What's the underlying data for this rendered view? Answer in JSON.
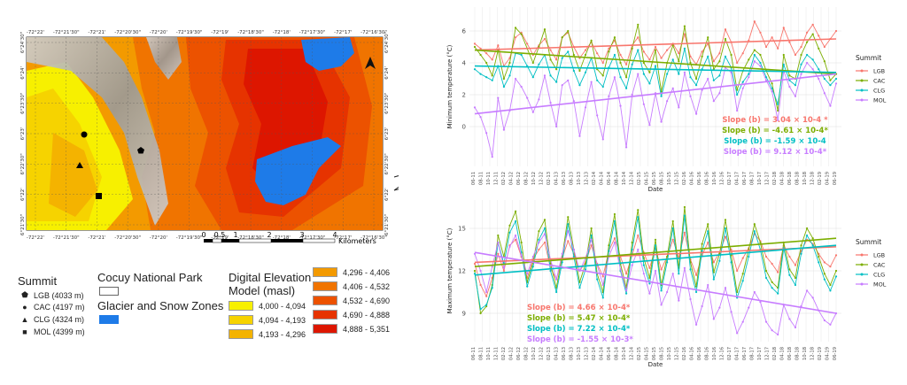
{
  "map": {
    "top_lon_labels": [
      "-72°22'",
      "-72°21'30\"",
      "-72°21'",
      "-72°20'30\"",
      "-72°20'",
      "-72°19'30\"",
      "-72°19'",
      "-72°18'30\"",
      "-72°18'",
      "-72°17'30\"",
      "-72°17'",
      "-72°16'30\""
    ],
    "bottom_lon_labels": [
      "-72°22'",
      "-72°21'30\"",
      "-72°21'",
      "-72°20'30\"",
      "-72°20'",
      "-72°19'30\"",
      "-72°19'",
      "-72°18'30\"",
      "-72°18'",
      "-72°17'30\"",
      "-72°17'",
      "-72°16'30\""
    ],
    "left_lat_labels": [
      "6°24'30\"",
      "6°24'",
      "6°23'30\"",
      "6°23'",
      "6°22'30\"",
      "6°22'",
      "6°21'30\""
    ],
    "right_lat_labels": [
      "6°24'30\"",
      "6°24'",
      "6°23'30\"",
      "6°23'",
      "6°22'30\"",
      "6°22'",
      "6°21'30\""
    ],
    "scale_labels": [
      "0",
      "0.5",
      "1",
      "2",
      "3",
      "4"
    ],
    "scale_unit": "Kilometers",
    "north_arrow": "north-arrow-icon"
  },
  "legend": {
    "summit_title": "Summit",
    "summits": [
      {
        "symbol": "pentagon",
        "label": "LGB (4033 m)"
      },
      {
        "symbol": "circle",
        "label": "CAC (4197 m)"
      },
      {
        "symbol": "triangle",
        "label": "CLG (4324 m)"
      },
      {
        "symbol": "square",
        "label": "MOL (4399 m)"
      }
    ],
    "park_title": "Cocuy National Park",
    "glacier_title": "Glacier and Snow Zones",
    "dem_title_line1": "Digital Elevation",
    "dem_title_line2": "Model (masl)",
    "dem_left": [
      {
        "label": "4,000 - 4,094",
        "color": "#f7f000"
      },
      {
        "label": "4,094 - 4,193",
        "color": "#f6d300"
      },
      {
        "label": "4,193 - 4,296",
        "color": "#f4b300"
      }
    ],
    "dem_right": [
      {
        "label": "4,296 - 4,406",
        "color": "#f39a00"
      },
      {
        "label": "4,406 - 4,532",
        "color": "#f07400"
      },
      {
        "label": "4,532 - 4,690",
        "color": "#ec5200"
      },
      {
        "label": "4,690 - 4,888",
        "color": "#e63300"
      },
      {
        "label": "4,888 - 5,351",
        "color": "#dd1600"
      }
    ],
    "glacier_color": "#1e7be8"
  },
  "chart_data": [
    {
      "type": "line",
      "ylabel": "Minimum temperature (°C)",
      "xlabel": "Date",
      "ylim": [
        -2.5,
        7.5
      ],
      "yticks": [
        0,
        2,
        4,
        6
      ],
      "x_tick_labels": [
        "06-11",
        "08-11",
        "10-11",
        "12-11",
        "02-12",
        "04-12",
        "06-12",
        "08-12",
        "10-12",
        "12-12",
        "02-13",
        "04-13",
        "06-13",
        "08-13",
        "10-13",
        "12-13",
        "02-14",
        "04-14",
        "06-14",
        "08-14",
        "10-14",
        "12-14",
        "02-15",
        "04-15",
        "06-15",
        "08-15",
        "10-15",
        "12-15",
        "02-16",
        "04-16",
        "06-16",
        "08-16",
        "10-16",
        "12-16",
        "02-17",
        "04-17",
        "06-17",
        "08-17",
        "10-17",
        "12-17",
        "02-18",
        "04-18",
        "06-18",
        "08-18",
        "10-18",
        "12-18",
        "02-19",
        "04-19",
        "06-19"
      ],
      "legend_title": "Summit",
      "series": [
        {
          "name": "LGB",
          "color": "#f8766d",
          "values": [
            5.2,
            4.9,
            4.6,
            4.2,
            5.1,
            3.8,
            4.3,
            5.6,
            5.9,
            5.2,
            4.5,
            5.1,
            5.5,
            4.8,
            4.2,
            5.6,
            5.9,
            5.0,
            4.3,
            4.8,
            5.3,
            4.6,
            4.0,
            4.9,
            5.4,
            4.5,
            3.9,
            5.1,
            5.6,
            4.7,
            4.2,
            5.0,
            4.3,
            4.8,
            5.2,
            4.6,
            5.8,
            4.4,
            3.9,
            4.7,
            5.2,
            4.1,
            4.6,
            6.1,
            5.3,
            4.0,
            4.6,
            5.4,
            6.6,
            5.9,
            5.0,
            5.6,
            4.9,
            6.2,
            5.3,
            4.5,
            5.0,
            5.9,
            6.4,
            5.7,
            5.0,
            5.5,
            6.0
          ]
        },
        {
          "name": "CAC",
          "color": "#7cae00",
          "values": [
            5.0,
            4.5,
            4.0,
            3.2,
            4.8,
            3.0,
            4.0,
            6.2,
            5.8,
            4.9,
            4.0,
            5.0,
            6.1,
            4.2,
            3.6,
            5.6,
            6.0,
            4.5,
            3.5,
            4.5,
            5.4,
            3.6,
            3.2,
            4.7,
            5.6,
            4.0,
            3.1,
            4.9,
            6.4,
            4.0,
            3.4,
            4.8,
            2.2,
            4.0,
            5.1,
            4.1,
            6.3,
            4.0,
            3.0,
            4.4,
            5.6,
            3.6,
            4.1,
            5.5,
            4.5,
            2.3,
            3.5,
            4.2,
            4.8,
            4.5,
            3.5,
            2.7,
            1.0,
            4.5,
            3.2,
            3.0,
            4.5,
            5.3,
            5.8,
            4.9,
            4.1,
            2.9,
            3.3
          ]
        },
        {
          "name": "CLG",
          "color": "#00bfc4",
          "values": [
            3.6,
            3.3,
            3.1,
            2.9,
            3.8,
            2.5,
            3.2,
            4.6,
            4.5,
            3.8,
            3.1,
            3.9,
            4.5,
            3.2,
            2.8,
            4.3,
            4.7,
            3.5,
            2.6,
            3.4,
            4.3,
            2.9,
            2.5,
            3.7,
            4.5,
            3.1,
            2.4,
            3.9,
            4.8,
            3.3,
            2.7,
            3.8,
            1.9,
            3.3,
            4.2,
            3.3,
            4.9,
            3.1,
            2.6,
            3.6,
            4.4,
            2.9,
            3.2,
            4.4,
            3.7,
            2.0,
            2.8,
            3.3,
            4.5,
            4.0,
            3.1,
            2.4,
            1.4,
            3.9,
            2.9,
            2.6,
            3.9,
            4.5,
            4.2,
            3.6,
            3.0,
            2.6,
            3.0
          ]
        },
        {
          "name": "MOL",
          "color": "#c77cff",
          "values": [
            1.2,
            0.6,
            -0.4,
            -1.9,
            1.8,
            -0.2,
            1.0,
            3.0,
            2.5,
            1.8,
            0.9,
            1.7,
            3.2,
            1.5,
            0.0,
            2.6,
            2.9,
            1.6,
            -0.6,
            1.2,
            2.8,
            0.7,
            -0.8,
            1.9,
            3.1,
            1.3,
            -1.3,
            2.0,
            3.3,
            1.4,
            0.1,
            2.1,
            0.3,
            1.6,
            2.4,
            1.2,
            3.4,
            1.9,
            0.8,
            2.3,
            3.0,
            1.6,
            2.1,
            3.7,
            3.4,
            1.0,
            2.4,
            3.1,
            4.1,
            3.8,
            2.9,
            2.2,
            0.4,
            3.5,
            2.5,
            1.9,
            3.3,
            4.0,
            3.6,
            3.0,
            2.1,
            1.3,
            2.7
          ]
        }
      ],
      "trend_lines": [
        {
          "series": "LGB",
          "start": 4.8,
          "end": 5.5
        },
        {
          "series": "CAC",
          "start": 4.8,
          "end": 3.3
        },
        {
          "series": "CLG",
          "start": 3.8,
          "end": 3.4
        },
        {
          "series": "MOL",
          "start": 0.8,
          "end": 3.3
        }
      ],
      "annotations": [
        {
          "text": "Slope (b) = 3.04 × 10-4 *",
          "color": "#f8766d"
        },
        {
          "text": "Slope (b) = -4.61 × 10-4*",
          "color": "#7cae00"
        },
        {
          "text": "Slope (b) = -1.59 × 10-4",
          "color": "#00bfc4"
        },
        {
          "text": "Slope (b) = 9.12 × 10-4*",
          "color": "#c77cff"
        }
      ],
      "grid": true,
      "legend_position": "right"
    },
    {
      "type": "line",
      "ylabel": "Maximum temperature (°C)",
      "xlabel": "Date",
      "ylim": [
        7,
        17
      ],
      "yticks": [
        9,
        12,
        15
      ],
      "x_tick_labels": [
        "06-11",
        "08-11",
        "10-11",
        "12-11",
        "02-12",
        "04-12",
        "06-12",
        "08-12",
        "10-12",
        "12-12",
        "02-13",
        "04-13",
        "06-13",
        "08-13",
        "10-13",
        "12-13",
        "02-14",
        "04-14",
        "06-14",
        "08-14",
        "10-14",
        "12-14",
        "02-15",
        "04-15",
        "06-15",
        "08-15",
        "10-15",
        "12-15",
        "02-16",
        "04-16",
        "06-16",
        "08-16",
        "10-16",
        "12-16",
        "02-17",
        "04-17",
        "06-17",
        "08-17",
        "10-17",
        "12-17",
        "02-18",
        "04-18",
        "06-18",
        "08-18",
        "10-18",
        "12-18",
        "02-19",
        "04-19",
        "06-19"
      ],
      "legend_title": "Summit",
      "series": [
        {
          "name": "LGB",
          "color": "#f8766d",
          "values": [
            12.5,
            11.0,
            10.2,
            11.5,
            13.2,
            12.0,
            13.8,
            14.2,
            13.0,
            11.5,
            12.8,
            13.5,
            14.0,
            12.2,
            11.4,
            12.9,
            14.1,
            13.2,
            12.0,
            12.6,
            13.8,
            12.5,
            11.6,
            13.4,
            14.3,
            13.0,
            11.8,
            13.1,
            14.5,
            13.3,
            12.2,
            13.6,
            12.1,
            13.0,
            14.2,
            12.9,
            14.7,
            12.8,
            11.7,
            13.1,
            14.0,
            12.6,
            13.3,
            14.4,
            13.5,
            12.0,
            12.9,
            13.6,
            14.6,
            14.1,
            13.0,
            12.5,
            11.9,
            13.8,
            13.0,
            12.4,
            13.4,
            14.2,
            13.9,
            13.2,
            12.6,
            12.3,
            13.1
          ]
        },
        {
          "name": "CAC",
          "color": "#7cae00",
          "values": [
            12.0,
            9.0,
            9.5,
            11.0,
            14.5,
            13.0,
            15.2,
            16.2,
            14.0,
            11.2,
            12.6,
            14.8,
            15.6,
            12.5,
            10.8,
            13.0,
            15.8,
            13.5,
            11.2,
            12.5,
            15.0,
            11.8,
            10.5,
            13.8,
            16.0,
            12.5,
            10.8,
            14.0,
            16.3,
            12.9,
            11.5,
            14.2,
            11.0,
            13.0,
            15.5,
            12.2,
            16.5,
            12.6,
            10.9,
            13.9,
            15.3,
            11.9,
            13.2,
            15.6,
            13.1,
            10.5,
            11.8,
            13.5,
            15.3,
            14.0,
            12.0,
            11.2,
            10.8,
            14.0,
            12.1,
            11.5,
            13.8,
            15.0,
            14.3,
            13.0,
            11.8,
            11.0,
            12.0
          ]
        },
        {
          "name": "CLG",
          "color": "#00bfc4",
          "values": [
            11.8,
            9.3,
            9.6,
            10.8,
            14.0,
            12.5,
            14.7,
            15.5,
            13.3,
            10.9,
            12.3,
            14.2,
            15.0,
            12.0,
            10.5,
            12.6,
            15.3,
            13.0,
            10.8,
            12.1,
            14.5,
            11.4,
            10.1,
            13.4,
            15.5,
            12.0,
            10.4,
            13.5,
            15.8,
            12.4,
            11.1,
            13.8,
            10.6,
            12.6,
            15.0,
            11.8,
            15.9,
            12.1,
            10.5,
            13.4,
            14.8,
            11.4,
            12.7,
            15.0,
            12.6,
            10.1,
            11.3,
            13.0,
            14.8,
            13.5,
            11.5,
            10.8,
            10.4,
            13.6,
            11.7,
            11.0,
            13.2,
            14.5,
            13.8,
            12.6,
            11.4,
            10.6,
            11.6
          ]
        },
        {
          "name": "MOL",
          "color": "#c77cff",
          "values": [
            13.2,
            12.0,
            10.5,
            12.3,
            14.0,
            12.2,
            13.7,
            14.5,
            13.1,
            11.8,
            13.0,
            14.0,
            14.6,
            12.8,
            11.4,
            13.2,
            14.8,
            13.5,
            12.0,
            12.9,
            14.2,
            12.4,
            11.0,
            13.0,
            14.0,
            12.1,
            10.6,
            12.4,
            13.5,
            11.8,
            10.4,
            12.0,
            9.6,
            10.5,
            11.8,
            9.9,
            12.2,
            10.0,
            8.2,
            9.5,
            11.0,
            8.6,
            9.4,
            10.8,
            9.1,
            7.6,
            8.4,
            9.4,
            10.5,
            9.8,
            8.4,
            7.8,
            7.5,
            9.6,
            8.6,
            8.0,
            9.5,
            10.6,
            10.1,
            9.2,
            8.5,
            8.2,
            9.0
          ]
        }
      ],
      "trend_lines": [
        {
          "series": "LGB",
          "start": 12.6,
          "end": 13.7
        },
        {
          "series": "CAC",
          "start": 12.3,
          "end": 14.3
        },
        {
          "series": "CLG",
          "start": 11.7,
          "end": 13.8
        },
        {
          "series": "MOL",
          "start": 13.3,
          "end": 9.0
        }
      ],
      "annotations": [
        {
          "text": "Slope (b) = 4.66 × 10-4*",
          "color": "#f8766d"
        },
        {
          "text": "Slope (b) = 5.47 × 10-4*",
          "color": "#7cae00"
        },
        {
          "text": "Slope (b) = 7.22 × 10-4*",
          "color": "#00bfc4"
        },
        {
          "text": "Slope (b) = -1.55 × 10-3*",
          "color": "#c77cff"
        }
      ],
      "grid": true,
      "legend_position": "right"
    }
  ]
}
